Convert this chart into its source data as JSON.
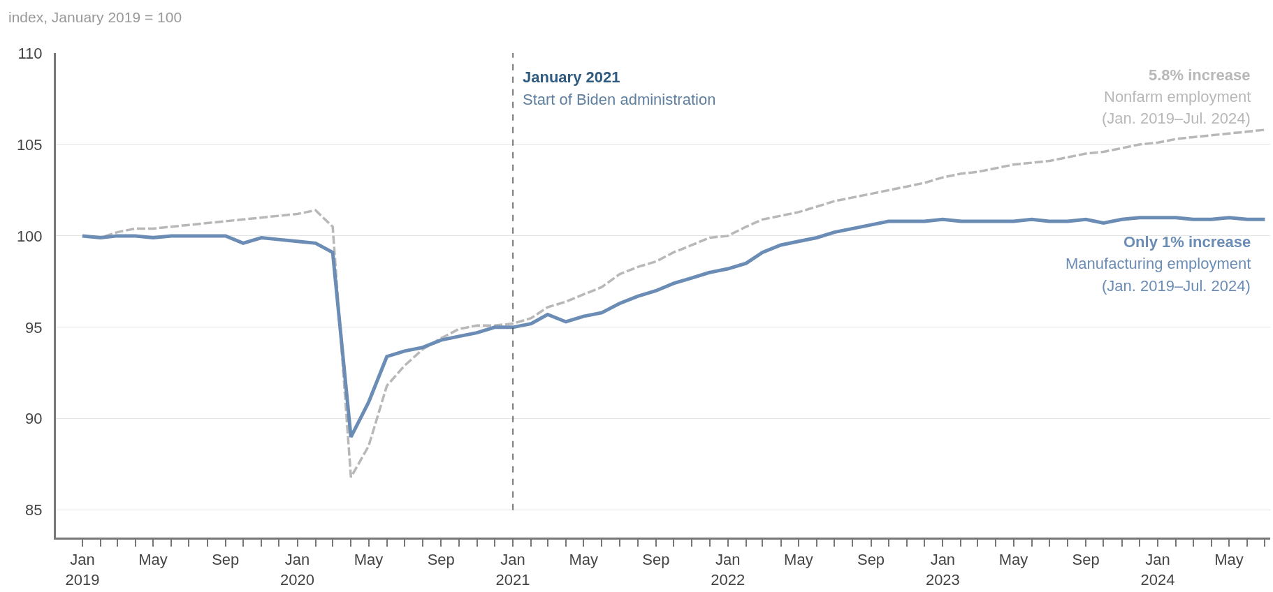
{
  "chart_data": {
    "type": "line",
    "ylabel": "index, January 2019 = 100",
    "x": [
      "2019-01",
      "2019-02",
      "2019-03",
      "2019-04",
      "2019-05",
      "2019-06",
      "2019-07",
      "2019-08",
      "2019-09",
      "2019-10",
      "2019-11",
      "2019-12",
      "2020-01",
      "2020-02",
      "2020-03",
      "2020-04",
      "2020-05",
      "2020-06",
      "2020-07",
      "2020-08",
      "2020-09",
      "2020-10",
      "2020-11",
      "2020-12",
      "2021-01",
      "2021-02",
      "2021-03",
      "2021-04",
      "2021-05",
      "2021-06",
      "2021-07",
      "2021-08",
      "2021-09",
      "2021-10",
      "2021-11",
      "2021-12",
      "2022-01",
      "2022-02",
      "2022-03",
      "2022-04",
      "2022-05",
      "2022-06",
      "2022-07",
      "2022-08",
      "2022-09",
      "2022-10",
      "2022-11",
      "2022-12",
      "2023-01",
      "2023-02",
      "2023-03",
      "2023-04",
      "2023-05",
      "2023-06",
      "2023-07",
      "2023-08",
      "2023-09",
      "2023-10",
      "2023-11",
      "2023-12",
      "2024-01",
      "2024-02",
      "2024-03",
      "2024-04",
      "2024-05",
      "2024-06",
      "2024-07"
    ],
    "series": [
      {
        "name": "Nonfarm employment",
        "color": "#b8b8b8",
        "line_style": "dashed",
        "values": [
          100,
          99.9,
          100.2,
          100.4,
          100.4,
          100.5,
          100.6,
          100.7,
          100.8,
          100.9,
          101.0,
          101.1,
          101.2,
          101.4,
          100.5,
          86.8,
          88.5,
          91.8,
          92.9,
          93.8,
          94.4,
          94.9,
          95.1,
          95.1,
          95.2,
          95.5,
          96.1,
          96.4,
          96.8,
          97.2,
          97.9,
          98.3,
          98.6,
          99.1,
          99.5,
          99.9,
          100.0,
          100.5,
          100.9,
          101.1,
          101.3,
          101.6,
          101.9,
          102.1,
          102.3,
          102.5,
          102.7,
          102.9,
          103.2,
          103.4,
          103.5,
          103.7,
          103.9,
          104.0,
          104.1,
          104.3,
          104.5,
          104.6,
          104.8,
          105.0,
          105.1,
          105.3,
          105.4,
          105.5,
          105.6,
          105.7,
          105.8
        ]
      },
      {
        "name": "Manufacturing employment",
        "color": "#6b8db5",
        "line_style": "solid",
        "values": [
          100,
          99.9,
          100,
          100,
          99.9,
          100,
          100,
          100,
          100,
          99.6,
          99.9,
          99.8,
          99.7,
          99.6,
          99.1,
          89.0,
          90.9,
          93.4,
          93.7,
          93.9,
          94.3,
          94.5,
          94.7,
          95.0,
          95.0,
          95.2,
          95.7,
          95.3,
          95.6,
          95.8,
          96.3,
          96.7,
          97.0,
          97.4,
          97.7,
          98.0,
          98.2,
          98.5,
          99.1,
          99.5,
          99.7,
          99.9,
          100.2,
          100.4,
          100.6,
          100.8,
          100.8,
          100.8,
          100.9,
          100.8,
          100.8,
          100.8,
          100.8,
          100.9,
          100.8,
          100.8,
          100.9,
          100.7,
          100.9,
          101.0,
          101.0,
          101.0,
          100.9,
          100.9,
          101.0,
          100.9,
          100.9
        ]
      }
    ],
    "annotations": [
      "5.8% increase",
      "(Jan. 2019–Jul. 2024)",
      "Only 1% increase",
      "(Jan. 2019–Jul. 2024)",
      "Start of Biden administration"
    ],
    "ref_lines": [
      {
        "axis": "x",
        "value": "2021-01",
        "label": "January 2021",
        "color": "#333333",
        "line_style": "dashed"
      }
    ],
    "xlim": [
      "2018-11-17",
      "2024-07-10"
    ],
    "xticks": [
      {
        "value": "2019-01",
        "label": "Jan\n2019"
      },
      {
        "value": "2019-02",
        "label": null
      },
      {
        "value": "2019-03",
        "label": null
      },
      {
        "value": "2019-04",
        "label": null
      },
      {
        "value": "2019-05",
        "label": "May"
      },
      {
        "value": "2019-06",
        "label": null
      },
      {
        "value": "2019-07",
        "label": null
      },
      {
        "value": "2019-08",
        "label": null
      },
      {
        "value": "2019-09",
        "label": "Sep"
      },
      {
        "value": "2019-10",
        "label": null
      },
      {
        "value": "2019-11",
        "label": null
      },
      {
        "value": "2019-12",
        "label": null
      },
      {
        "value": "2020-01",
        "label": "Jan\n2020"
      },
      {
        "value": "2020-02",
        "label": null
      },
      {
        "value": "2020-03",
        "label": null
      },
      {
        "value": "2020-04",
        "label": null
      },
      {
        "value": "2020-05",
        "label": "May"
      },
      {
        "value": "2020-06",
        "label": null
      },
      {
        "value": "2020-07",
        "label": null
      },
      {
        "value": "2020-08",
        "label": null
      },
      {
        "value": "2020-09",
        "label": "Sep"
      },
      {
        "value": "2020-10",
        "label": null
      },
      {
        "value": "2020-11",
        "label": null
      },
      {
        "value": "2020-12",
        "label": null
      },
      {
        "value": "2021-01",
        "label": "Jan\n2021"
      },
      {
        "value": "2021-02",
        "label": null
      },
      {
        "value": "2021-03",
        "label": null
      },
      {
        "value": "2021-04",
        "label": null
      },
      {
        "value": "2021-05",
        "label": "May"
      },
      {
        "value": "2021-06",
        "label": null
      },
      {
        "value": "2021-07",
        "label": null
      },
      {
        "value": "2021-08",
        "label": null
      },
      {
        "value": "2021-09",
        "label": "Sep"
      },
      {
        "value": "2021-10",
        "label": null
      },
      {
        "value": "2021-11",
        "label": null
      },
      {
        "value": "2021-12",
        "label": null
      },
      {
        "value": "2022-01",
        "label": "Jan\n2022"
      },
      {
        "value": "2022-02",
        "label": null
      },
      {
        "value": "2022-03",
        "label": null
      },
      {
        "value": "2022-04",
        "label": null
      },
      {
        "value": "2022-05",
        "label": "May"
      },
      {
        "value": "2022-06",
        "label": null
      },
      {
        "value": "2022-07",
        "label": null
      },
      {
        "value": "2022-08",
        "label": null
      },
      {
        "value": "2022-09",
        "label": "Sep"
      },
      {
        "value": "2022-10",
        "label": null
      },
      {
        "value": "2022-11",
        "label": null
      },
      {
        "value": "2022-12",
        "label": null
      },
      {
        "value": "2023-01",
        "label": "Jan\n2023"
      },
      {
        "value": "2023-02",
        "label": null
      },
      {
        "value": "2023-03",
        "label": null
      },
      {
        "value": "2023-04",
        "label": null
      },
      {
        "value": "2023-05",
        "label": "May"
      },
      {
        "value": "2023-06",
        "label": null
      },
      {
        "value": "2023-07",
        "label": null
      },
      {
        "value": "2023-08",
        "label": null
      },
      {
        "value": "2023-09",
        "label": "Sep"
      },
      {
        "value": "2023-10",
        "label": null
      },
      {
        "value": "2023-11",
        "label": null
      },
      {
        "value": "2023-12",
        "label": null
      },
      {
        "value": "2024-01",
        "label": "Jan\n2024"
      },
      {
        "value": "2024-02",
        "label": null
      },
      {
        "value": "2024-03",
        "label": null
      },
      {
        "value": "2024-04",
        "label": null
      },
      {
        "value": "2024-05",
        "label": "May"
      },
      {
        "value": "2024-06",
        "label": null
      },
      {
        "value": "2024-07",
        "label": null
      }
    ],
    "ylim": [
      83.5,
      110
    ],
    "yticks": [
      85,
      90,
      95,
      100,
      105,
      110
    ],
    "grid": "y",
    "legend": false,
    "marker": "none"
  }
}
